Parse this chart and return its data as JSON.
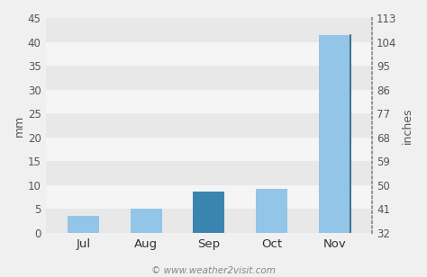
{
  "categories": [
    "Jul",
    "Aug",
    "Sep",
    "Oct",
    "Nov"
  ],
  "values": [
    3.5,
    5.0,
    8.7,
    9.3,
    41.5
  ],
  "bar_colors": [
    "#92c5e8",
    "#92c5e8",
    "#3a85b0",
    "#92c5e8",
    "#92c5e8"
  ],
  "ylabel_left": "mm",
  "ylabel_right": "inches",
  "ylim_left": [
    0,
    45
  ],
  "yticks_left": [
    0,
    5,
    10,
    15,
    20,
    25,
    30,
    35,
    40,
    45
  ],
  "yticks_right_labels": [
    "32",
    "41",
    "50",
    "59",
    "68",
    "77",
    "86",
    "95",
    "104",
    "113"
  ],
  "bg_color": "#f0f0f0",
  "band_colors": [
    "#e8e8e8",
    "#f5f5f5"
  ],
  "grid_line_color": "#ffffff",
  "footer_text": "© www.weather2visit.com",
  "tick_fontsize": 8.5,
  "label_fontsize": 9,
  "bar_width": 0.5
}
